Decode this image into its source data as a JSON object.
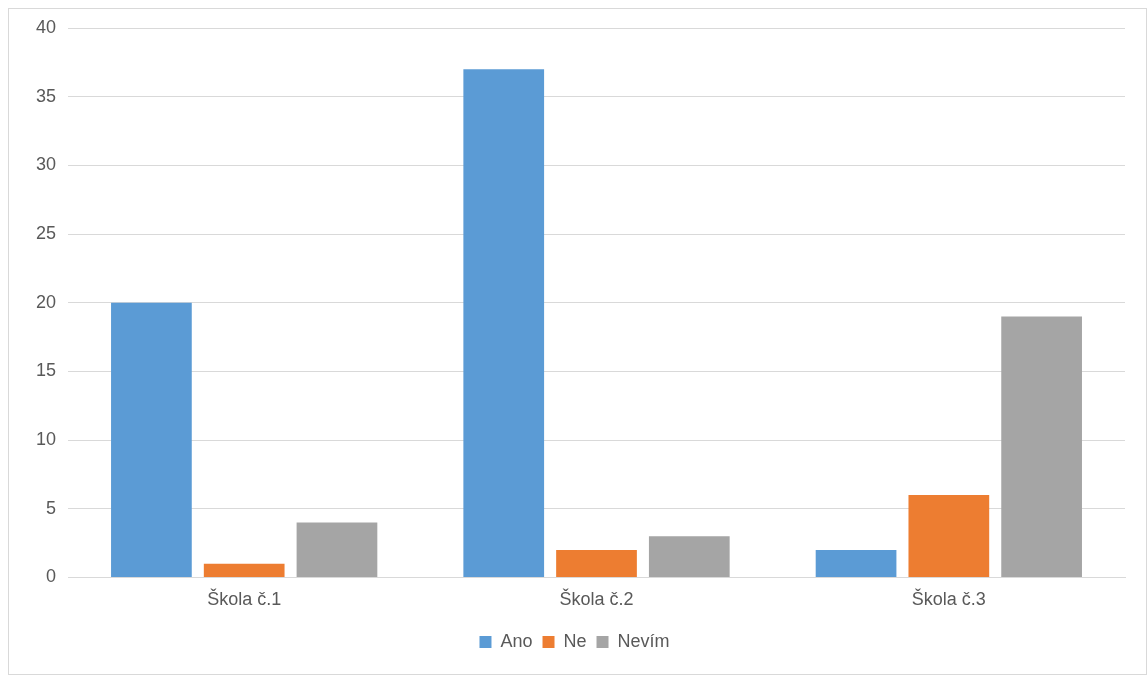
{
  "chart_data": {
    "type": "bar",
    "categories": [
      "Škola č.1",
      "Škola č.2",
      "Škola č.3"
    ],
    "series": [
      {
        "name": "Ano",
        "color": "#5b9bd5",
        "values": [
          20,
          37,
          2
        ]
      },
      {
        "name": "Ne",
        "color": "#ed7d31",
        "values": [
          1,
          2,
          6
        ]
      },
      {
        "name": "Nevím",
        "color": "#a5a5a5",
        "values": [
          4,
          3,
          19
        ]
      }
    ],
    "ylim": [
      0,
      40
    ],
    "yticks": [
      0,
      5,
      10,
      15,
      20,
      25,
      30,
      35,
      40
    ],
    "grid": "y",
    "legend": "bottom"
  }
}
